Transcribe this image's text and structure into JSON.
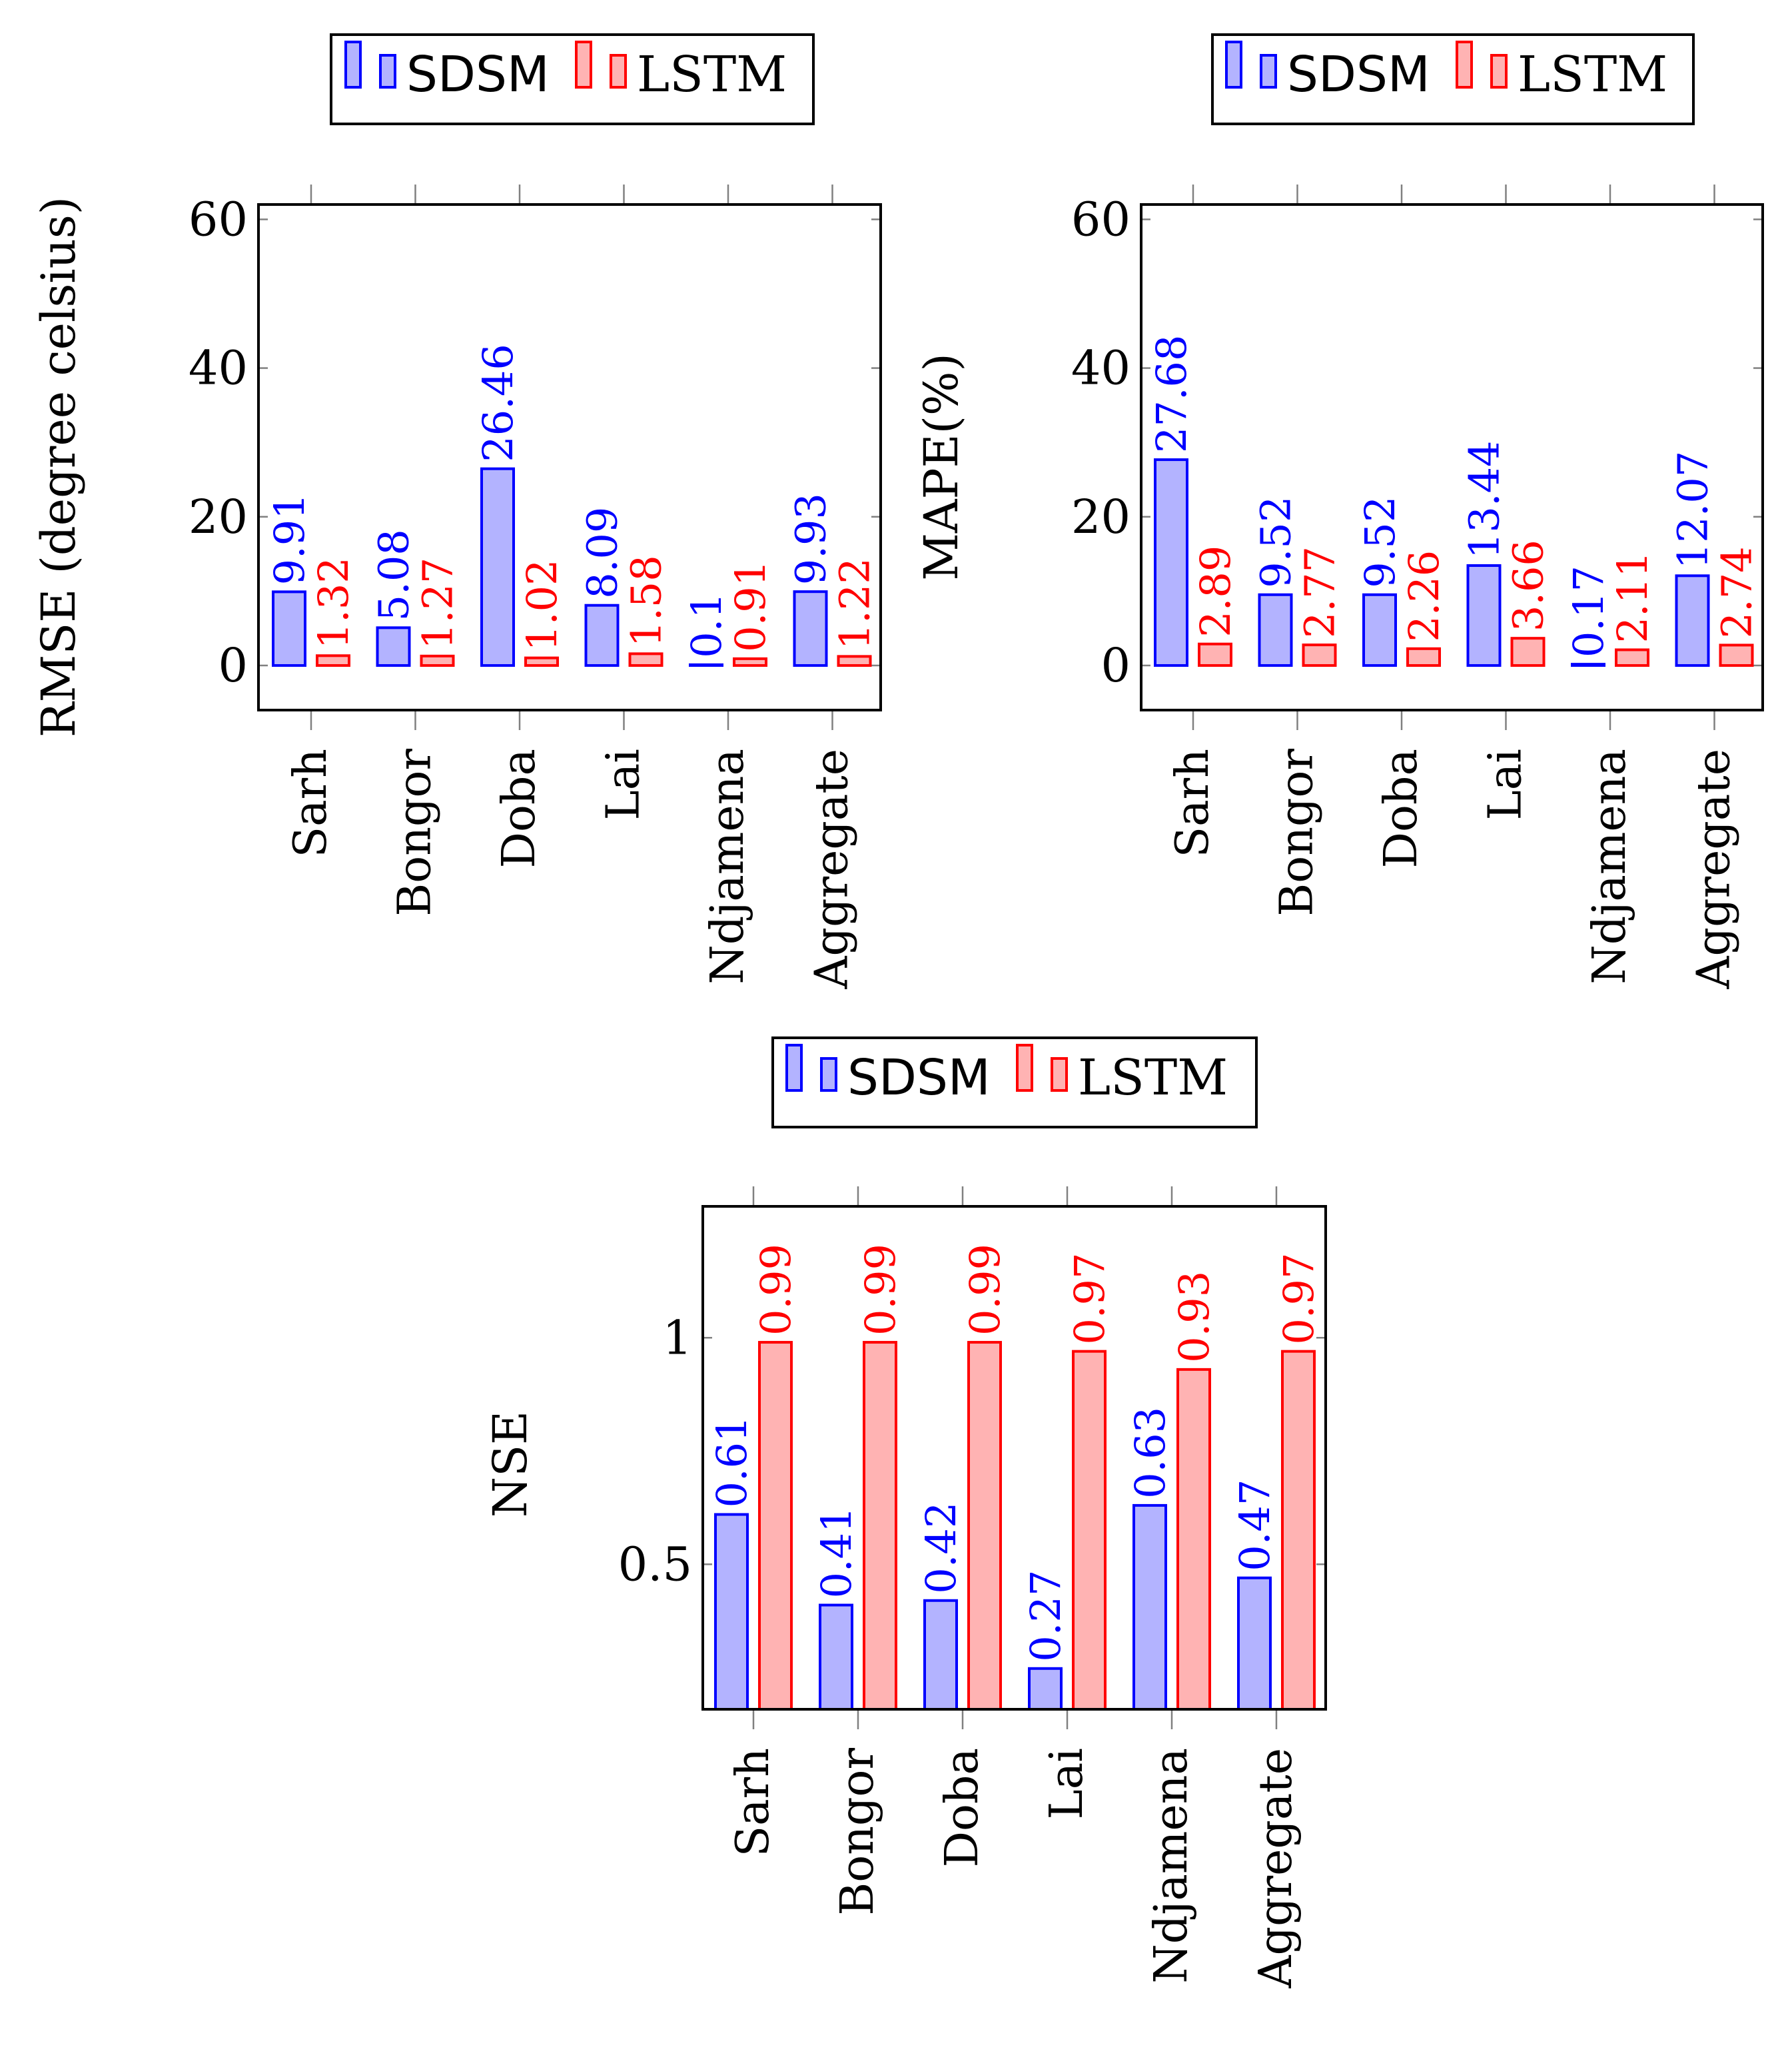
{
  "legend": {
    "series1": "SDSM",
    "series2": "LSTM"
  },
  "colors": {
    "sdsm_stroke": "#0000ff",
    "sdsm_fill": "#b3b3ff",
    "lstm_stroke": "#ff0000",
    "lstm_fill": "#ffb3b3",
    "axis": "#000000",
    "tick": "#808080"
  },
  "chart_data": [
    {
      "id": "rmse",
      "type": "bar",
      "ylabel": "RMSE (degree celsius)",
      "categories": [
        "Sarh",
        "Bongor",
        "Doba",
        "Lai",
        "Ndjamena",
        "Aggregate"
      ],
      "series": [
        {
          "name": "SDSM",
          "values": [
            9.91,
            5.08,
            26.46,
            8.09,
            0.1,
            9.93
          ]
        },
        {
          "name": "LSTM",
          "values": [
            1.32,
            1.27,
            1.02,
            1.58,
            0.91,
            1.22
          ]
        }
      ],
      "labels": [
        [
          "9.91",
          "5.08",
          "26.46",
          "8.09",
          "0.1",
          "9.93"
        ],
        [
          "1.32",
          "1.27",
          "1.02",
          "1.58",
          "0.91",
          "1.22"
        ]
      ],
      "ylim": [
        -6,
        62
      ],
      "yticks": [
        0,
        20,
        40,
        60
      ],
      "ytick_labels": [
        "0",
        "20",
        "40",
        "60"
      ]
    },
    {
      "id": "mape",
      "type": "bar",
      "ylabel": "MAPE(%)",
      "categories": [
        "Sarh",
        "Bongor",
        "Doba",
        "Lai",
        "Ndjamena",
        "Aggregate"
      ],
      "series": [
        {
          "name": "SDSM",
          "values": [
            27.68,
            9.52,
            9.52,
            13.44,
            0.17,
            12.07
          ]
        },
        {
          "name": "LSTM",
          "values": [
            2.89,
            2.77,
            2.26,
            3.66,
            2.11,
            2.74
          ]
        }
      ],
      "labels": [
        [
          "27.68",
          "9.52",
          "9.52",
          "13.44",
          "0.17",
          "12.07"
        ],
        [
          "2.89",
          "2.77",
          "2.26",
          "3.66",
          "2.11",
          "2.74"
        ]
      ],
      "ylim": [
        -6,
        62
      ],
      "yticks": [
        0,
        20,
        40,
        60
      ],
      "ytick_labels": [
        "0",
        "20",
        "40",
        "60"
      ]
    },
    {
      "id": "nse",
      "type": "bar",
      "ylabel": "NSE",
      "categories": [
        "Sarh",
        "Bongor",
        "Doba",
        "Lai",
        "Ndjamena",
        "Aggregate"
      ],
      "series": [
        {
          "name": "SDSM",
          "values": [
            0.61,
            0.41,
            0.42,
            0.27,
            0.63,
            0.47
          ]
        },
        {
          "name": "LSTM",
          "values": [
            0.99,
            0.99,
            0.99,
            0.97,
            0.93,
            0.97
          ]
        }
      ],
      "labels": [
        [
          "0.61",
          "0.41",
          "0.42",
          "0.27",
          "0.63",
          "0.47"
        ],
        [
          "0.99",
          "0.99",
          "0.99",
          "0.97",
          "0.93",
          "0.97"
        ]
      ],
      "ybase": 0.18,
      "ylim": [
        0.18,
        1.29
      ],
      "yticks": [
        0.5,
        1
      ],
      "ytick_labels": [
        "0.5",
        "1"
      ]
    }
  ]
}
